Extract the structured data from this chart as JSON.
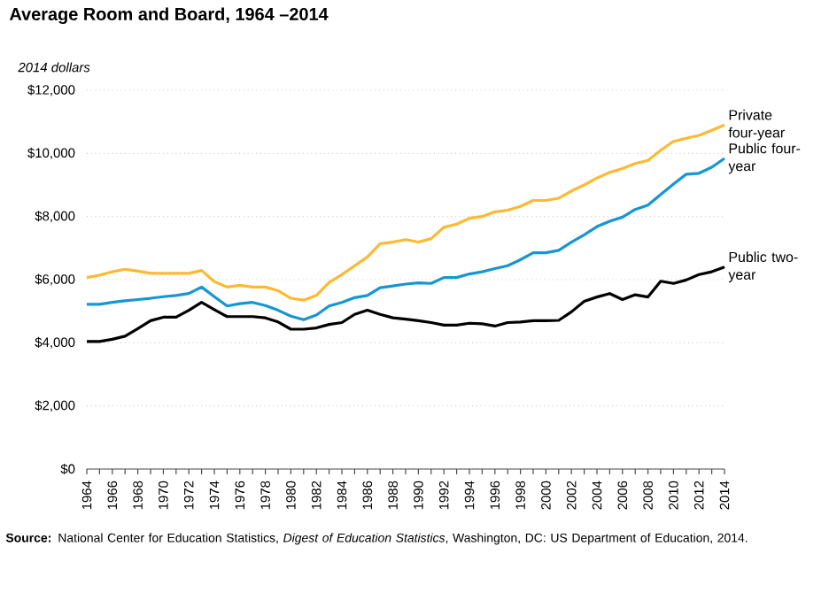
{
  "chart_data": {
    "type": "line",
    "title": "Average Room and Board, 1964 –2014",
    "ylabel": "*2014 dollars*",
    "x": [
      1964,
      1965,
      1966,
      1967,
      1968,
      1969,
      1970,
      1971,
      1972,
      1973,
      1974,
      1975,
      1976,
      1977,
      1978,
      1979,
      1980,
      1981,
      1982,
      1983,
      1984,
      1985,
      1986,
      1987,
      1988,
      1989,
      1990,
      1991,
      1992,
      1993,
      1994,
      1995,
      1996,
      1997,
      1998,
      1999,
      2000,
      2001,
      2002,
      2003,
      2004,
      2005,
      2006,
      2007,
      2008,
      2009,
      2010,
      2011,
      2012,
      2013,
      2014
    ],
    "series": [
      {
        "name": "Private four-year",
        "color": "#fdb932",
        "values": [
          6066,
          6140,
          6250,
          6330,
          6270,
          6200,
          6200,
          6200,
          6200,
          6290,
          5935,
          5765,
          5820,
          5765,
          5765,
          5650,
          5410,
          5350,
          5500,
          5915,
          6160,
          6440,
          6720,
          7140,
          7190,
          7270,
          7190,
          7300,
          7660,
          7760,
          7945,
          8000,
          8150,
          8200,
          8320,
          8510,
          8510,
          8580,
          8810,
          9000,
          9220,
          9400,
          9520,
          9680,
          9780,
          10100,
          10380,
          10480,
          10570,
          10730,
          10900
        ]
      },
      {
        "name": "Public four-year",
        "color": "#1696d2",
        "values": [
          5220,
          5220,
          5280,
          5330,
          5370,
          5410,
          5460,
          5500,
          5560,
          5765,
          5460,
          5165,
          5240,
          5280,
          5180,
          5030,
          4845,
          4730,
          4880,
          5165,
          5280,
          5430,
          5500,
          5745,
          5800,
          5860,
          5900,
          5880,
          6066,
          6066,
          6180,
          6250,
          6350,
          6440,
          6630,
          6850,
          6850,
          6930,
          7190,
          7420,
          7680,
          7850,
          7980,
          8225,
          8360,
          8700,
          9030,
          9340,
          9370,
          9560,
          9840
        ]
      },
      {
        "name": "Public two-year",
        "color": "#000000",
        "values": [
          4040,
          4040,
          4110,
          4210,
          4450,
          4700,
          4810,
          4810,
          5030,
          5280,
          5050,
          4830,
          4830,
          4830,
          4790,
          4660,
          4430,
          4430,
          4470,
          4580,
          4640,
          4900,
          5030,
          4900,
          4790,
          4750,
          4700,
          4640,
          4560,
          4560,
          4620,
          4600,
          4530,
          4640,
          4660,
          4700,
          4700,
          4710,
          4980,
          5315,
          5450,
          5560,
          5370,
          5520,
          5450,
          5950,
          5880,
          5990,
          6160,
          6250,
          6400
        ]
      }
    ],
    "xlim": [
      1964,
      2014
    ],
    "xticks": [
      1964,
      {
        "value": 1965,
        "label": null
      },
      1966,
      {
        "value": 1967,
        "label": null
      },
      1968,
      {
        "value": 1969,
        "label": null
      },
      1970,
      {
        "value": 1971,
        "label": null
      },
      1972,
      {
        "value": 1973,
        "label": null
      },
      1974,
      {
        "value": 1975,
        "label": null
      },
      1976,
      {
        "value": 1977,
        "label": null
      },
      1978,
      {
        "value": 1979,
        "label": null
      },
      1980,
      {
        "value": 1981,
        "label": null
      },
      1982,
      {
        "value": 1983,
        "label": null
      },
      1984,
      {
        "value": 1985,
        "label": null
      },
      1986,
      {
        "value": 1987,
        "label": null
      },
      1988,
      {
        "value": 1989,
        "label": null
      },
      1990,
      {
        "value": 1991,
        "label": null
      },
      1992,
      {
        "value": 1993,
        "label": null
      },
      1994,
      {
        "value": 1995,
        "label": null
      },
      1996,
      {
        "value": 1997,
        "label": null
      },
      1998,
      {
        "value": 1999,
        "label": null
      },
      2000,
      {
        "value": 2001,
        "label": null
      },
      2002,
      {
        "value": 2003,
        "label": null
      },
      2004,
      {
        "value": 2005,
        "label": null
      },
      2006,
      {
        "value": 2007,
        "label": null
      },
      2008,
      {
        "value": 2009,
        "label": null
      },
      2010,
      {
        "value": 2011,
        "label": null
      },
      2012,
      {
        "value": 2013,
        "label": null
      },
      2014
    ],
    "ylim": [
      0,
      12000
    ],
    "yticks": [
      {
        "value": 0,
        "label": "$0"
      },
      {
        "value": 2000,
        "label": "$2,000"
      },
      {
        "value": 4000,
        "label": "$4,000"
      },
      {
        "value": 6000,
        "label": "$6,000"
      },
      {
        "value": 8000,
        "label": "$8,000"
      },
      {
        "value": 10000,
        "label": "$10,000"
      },
      {
        "value": 12000,
        "label": "$12,000"
      }
    ],
    "grid": "y",
    "marker": "none",
    "line_style": "solid",
    "annotations": [
      "**Source:** National Center for Education Statistics, *Digest of Education Statistics*, Washington, DC: US Department of Education, 2014."
    ]
  }
}
